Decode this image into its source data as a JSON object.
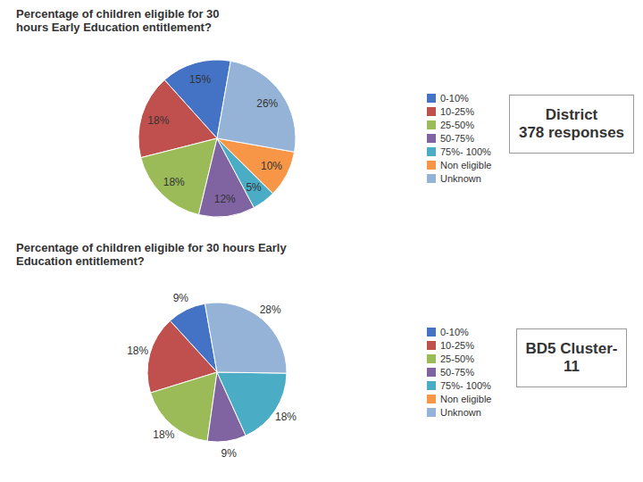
{
  "chart_data": [
    {
      "type": "pie",
      "title": "Percentage of children eligible for 30\nhours Early Education entitlement?",
      "categories": [
        "0-10%",
        "10-25%",
        "25-50%",
        "50-75%",
        "75%- 100%",
        "Non eligible",
        "Unknown"
      ],
      "values": [
        15,
        18,
        18,
        12,
        5,
        10,
        26
      ],
      "value_labels": [
        "15%",
        "18%",
        "18%",
        "12%",
        "5%",
        "10%",
        "26%"
      ],
      "colors": [
        "#4472c4",
        "#c0504d",
        "#9bbb59",
        "#8064a2",
        "#4bacc6",
        "#f79646",
        "#95b3d7"
      ],
      "data_labels": true,
      "legend": "right",
      "annotations": [
        "District\n378 responses"
      ]
    },
    {
      "type": "pie",
      "title": "Percentage of children eligible for 30 hours Early\nEducation entitlement?",
      "categories": [
        "0-10%",
        "10-25%",
        "25-50%",
        "50-75%",
        "75%- 100%",
        "Non eligible",
        "Unknown"
      ],
      "values": [
        9,
        18,
        18,
        9,
        18,
        0,
        28
      ],
      "value_labels": [
        "9%",
        "18%",
        "18%",
        "9%",
        "18%",
        null,
        "28%"
      ],
      "colors": [
        "#4472c4",
        "#c0504d",
        "#9bbb59",
        "#8064a2",
        "#4bacc6",
        "#f79646",
        "#95b3d7"
      ],
      "data_labels": true,
      "legend": "right",
      "annotations": [
        "BD5 Cluster-\n11"
      ]
    }
  ]
}
